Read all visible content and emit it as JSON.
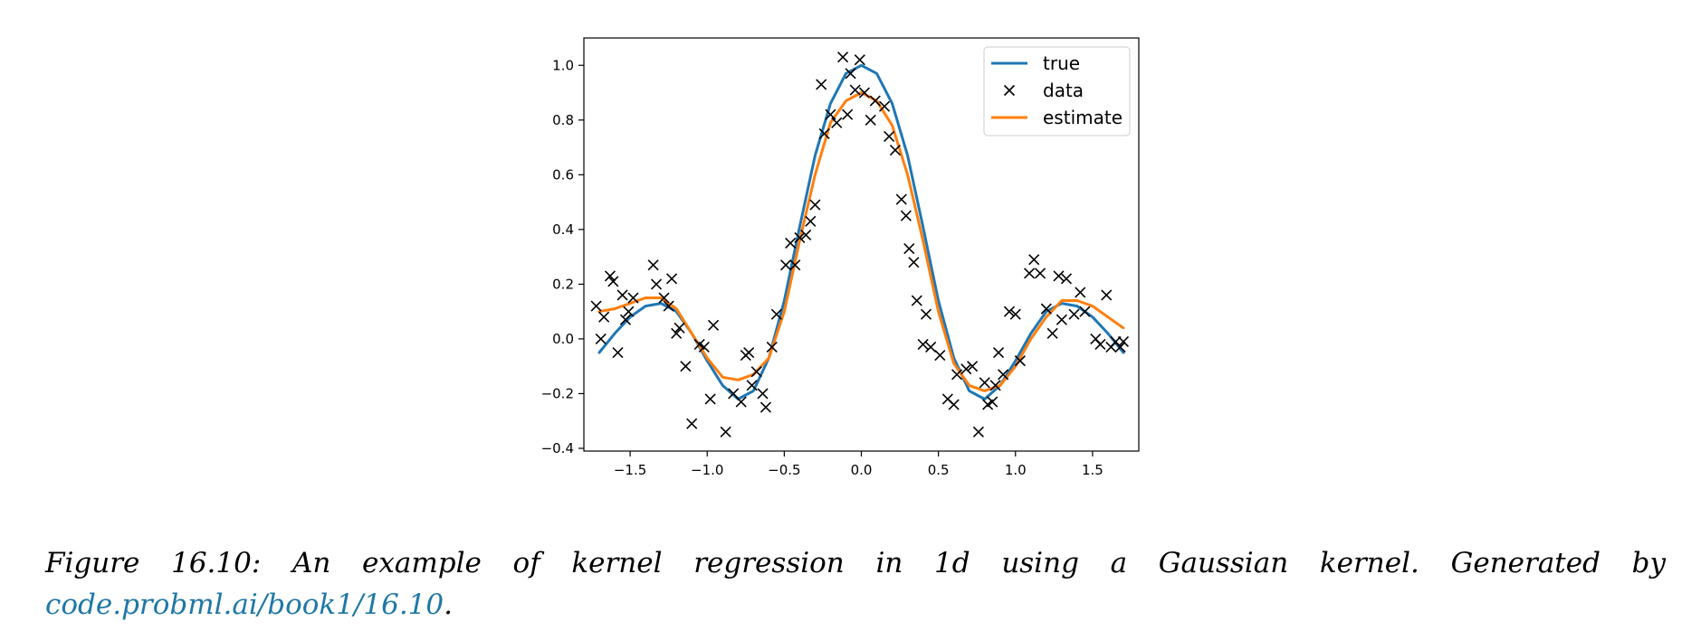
{
  "chart_data": {
    "type": "line",
    "title": "",
    "xlabel": "",
    "ylabel": "",
    "xlim": [
      -1.8,
      1.8
    ],
    "ylim": [
      -0.41,
      1.1
    ],
    "xticks": [
      -1.5,
      -1.0,
      -0.5,
      0.0,
      0.5,
      1.0,
      1.5
    ],
    "xtick_labels": [
      "−1.5",
      "−1.0",
      "−0.5",
      "0.0",
      "0.5",
      "1.0",
      "1.5"
    ],
    "yticks": [
      -0.4,
      -0.2,
      0.0,
      0.2,
      0.4,
      0.6,
      0.8,
      1.0
    ],
    "ytick_labels": [
      "−0.4",
      "−0.2",
      "0.0",
      "0.2",
      "0.4",
      "0.6",
      "0.8",
      "1.0"
    ],
    "grid": false,
    "legend_position": "top-right",
    "series": [
      {
        "name": "true",
        "kind": "line",
        "color": "#1f77b4",
        "x": [
          -1.7,
          -1.6,
          -1.5,
          -1.4,
          -1.3,
          -1.2,
          -1.1,
          -1.0,
          -0.9,
          -0.8,
          -0.7,
          -0.6,
          -0.5,
          -0.4,
          -0.3,
          -0.2,
          -0.1,
          0.0,
          0.1,
          0.2,
          0.3,
          0.4,
          0.5,
          0.6,
          0.7,
          0.8,
          0.9,
          1.0,
          1.1,
          1.2,
          1.3,
          1.4,
          1.5,
          1.6,
          1.7
        ],
        "y": [
          -0.05,
          0.02,
          0.08,
          0.12,
          0.13,
          0.1,
          0.02,
          -0.08,
          -0.17,
          -0.22,
          -0.19,
          -0.07,
          0.14,
          0.41,
          0.67,
          0.86,
          0.97,
          1.0,
          0.97,
          0.86,
          0.67,
          0.41,
          0.14,
          -0.07,
          -0.19,
          -0.22,
          -0.17,
          -0.08,
          0.02,
          0.1,
          0.13,
          0.12,
          0.08,
          0.02,
          -0.05
        ]
      },
      {
        "name": "data",
        "kind": "scatter",
        "marker": "x",
        "color": "#000000",
        "x": [
          -1.72,
          -1.69,
          -1.67,
          -1.63,
          -1.61,
          -1.58,
          -1.55,
          -1.53,
          -1.51,
          -1.48,
          -1.35,
          -1.33,
          -1.28,
          -1.25,
          -1.23,
          -1.2,
          -1.18,
          -1.14,
          -1.1,
          -1.05,
          -1.02,
          -0.98,
          -0.96,
          -0.88,
          -0.83,
          -0.78,
          -0.75,
          -0.73,
          -0.71,
          -0.68,
          -0.64,
          -0.62,
          -0.58,
          -0.55,
          -0.49,
          -0.46,
          -0.43,
          -0.4,
          -0.36,
          -0.33,
          -0.3,
          -0.26,
          -0.24,
          -0.2,
          -0.16,
          -0.12,
          -0.09,
          -0.07,
          -0.04,
          -0.01,
          0.02,
          0.06,
          0.09,
          0.15,
          0.18,
          0.22,
          0.26,
          0.29,
          0.31,
          0.34,
          0.36,
          0.4,
          0.42,
          0.45,
          0.51,
          0.56,
          0.6,
          0.62,
          0.68,
          0.72,
          0.76,
          0.8,
          0.82,
          0.85,
          0.87,
          0.89,
          0.92,
          0.96,
          1.0,
          1.03,
          1.09,
          1.12,
          1.16,
          1.2,
          1.24,
          1.28,
          1.3,
          1.33,
          1.38,
          1.42,
          1.45,
          1.52,
          1.55,
          1.59,
          1.62,
          1.65,
          1.68,
          1.7
        ],
        "y": [
          0.12,
          0.0,
          0.08,
          0.23,
          0.21,
          -0.05,
          0.16,
          0.07,
          0.1,
          0.15,
          0.27,
          0.2,
          0.15,
          0.12,
          0.22,
          0.02,
          0.04,
          -0.1,
          -0.31,
          -0.02,
          -0.03,
          -0.22,
          0.05,
          -0.34,
          -0.2,
          -0.23,
          -0.06,
          -0.05,
          -0.17,
          -0.12,
          -0.2,
          -0.25,
          -0.03,
          0.09,
          0.27,
          0.35,
          0.27,
          0.37,
          0.38,
          0.43,
          0.49,
          0.93,
          0.75,
          0.82,
          0.79,
          1.03,
          0.82,
          0.97,
          0.91,
          1.02,
          0.9,
          0.8,
          0.87,
          0.85,
          0.74,
          0.69,
          0.51,
          0.45,
          0.33,
          0.28,
          0.14,
          -0.02,
          0.09,
          -0.03,
          -0.06,
          -0.22,
          -0.24,
          -0.13,
          -0.11,
          -0.1,
          -0.34,
          -0.16,
          -0.24,
          -0.23,
          -0.17,
          -0.05,
          -0.13,
          0.1,
          0.09,
          -0.08,
          0.24,
          0.29,
          0.24,
          0.11,
          0.02,
          0.23,
          0.07,
          0.22,
          0.09,
          0.17,
          0.1,
          0.0,
          -0.02,
          0.16,
          -0.03,
          -0.01,
          -0.03,
          -0.01
        ]
      },
      {
        "name": "estimate",
        "kind": "line",
        "color": "#ff7f0e",
        "x": [
          -1.7,
          -1.6,
          -1.5,
          -1.4,
          -1.3,
          -1.2,
          -1.1,
          -1.0,
          -0.9,
          -0.8,
          -0.7,
          -0.6,
          -0.5,
          -0.4,
          -0.3,
          -0.2,
          -0.1,
          0.0,
          0.1,
          0.2,
          0.3,
          0.4,
          0.5,
          0.6,
          0.7,
          0.8,
          0.9,
          1.0,
          1.1,
          1.2,
          1.3,
          1.4,
          1.5,
          1.6,
          1.7
        ],
        "y": [
          0.1,
          0.11,
          0.13,
          0.15,
          0.15,
          0.11,
          0.02,
          -0.07,
          -0.14,
          -0.15,
          -0.13,
          -0.07,
          0.1,
          0.36,
          0.6,
          0.79,
          0.87,
          0.9,
          0.87,
          0.78,
          0.6,
          0.36,
          0.1,
          -0.09,
          -0.17,
          -0.19,
          -0.17,
          -0.1,
          0.0,
          0.08,
          0.14,
          0.14,
          0.12,
          0.08,
          0.04
        ]
      }
    ]
  },
  "caption": {
    "words": [
      "Figure",
      "16.10:",
      "An",
      "example",
      "of",
      "kernel",
      "regression",
      "in",
      "1d",
      "using",
      "a",
      "Gaussian",
      "kernel.",
      "Generated",
      "by"
    ],
    "link_text": "code.probml.ai/book1/16.10",
    "trailing": "."
  }
}
